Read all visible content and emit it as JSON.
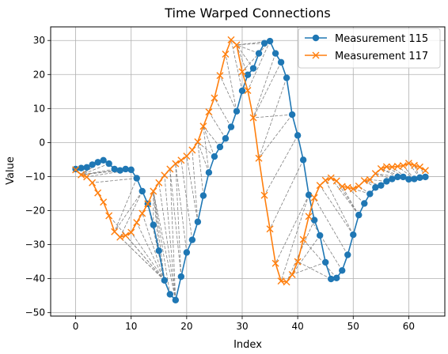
{
  "chart_data": {
    "type": "line",
    "title": "Time Warped Connections",
    "xlabel": "Index",
    "ylabel": "Value",
    "xlim": [
      -4.5,
      66.5
    ],
    "ylim": [
      -51,
      34
    ],
    "xticks": [
      0,
      10,
      20,
      30,
      40,
      50,
      60
    ],
    "yticks": [
      -50,
      -40,
      -30,
      -20,
      -10,
      0,
      10,
      20,
      30
    ],
    "grid": true,
    "legend_position": "top-right",
    "series": [
      {
        "name": "Measurement 115",
        "color": "#1f77b4",
        "marker": "circle",
        "x": [
          0,
          1,
          2,
          3,
          4,
          5,
          6,
          7,
          8,
          9,
          10,
          11,
          12,
          13,
          14,
          15,
          16,
          17,
          18,
          19,
          20,
          21,
          22,
          23,
          24,
          25,
          26,
          27,
          28,
          29,
          30,
          31,
          32,
          33,
          34,
          35,
          36,
          37,
          38,
          39,
          40,
          41,
          42,
          43,
          44,
          45,
          46,
          47,
          48,
          49,
          50,
          51,
          52,
          53,
          54,
          55,
          56,
          57,
          58,
          59,
          60,
          61,
          62,
          63
        ],
        "values": [
          -7.8,
          -7.5,
          -7.3,
          -6.5,
          -5.8,
          -5.2,
          -6.2,
          -7.8,
          -8.2,
          -7.8,
          -8,
          -10.5,
          -14.3,
          -18,
          -24.2,
          -31.8,
          -40.5,
          -44.6,
          -46.3,
          -39.4,
          -32.3,
          -28.6,
          -23.3,
          -15.6,
          -8.8,
          -4.1,
          -1.3,
          1.2,
          4.6,
          9.2,
          15.2,
          19.9,
          21.8,
          26.2,
          29.2,
          29.8,
          26.2,
          23.6,
          19,
          8.2,
          2.1,
          -5.1,
          -15.4,
          -22.8,
          -27.3,
          -35.2,
          -40.1,
          -39.8,
          -37.6,
          -33,
          -27.1,
          -21.3,
          -17.9,
          -15.1,
          -13.2,
          -12.6,
          -11.4,
          -10.7,
          -10.1,
          -10.1,
          -10.8,
          -10.7,
          -10.3,
          -10.1
        ]
      },
      {
        "name": "Measurement 117",
        "color": "#ff7f0e",
        "marker": "x",
        "x": [
          0,
          1,
          2,
          3,
          4,
          5,
          6,
          7,
          8,
          9,
          10,
          11,
          12,
          13,
          14,
          15,
          16,
          17,
          18,
          19,
          20,
          21,
          22,
          23,
          24,
          25,
          26,
          27,
          28,
          29,
          30,
          31,
          32,
          33,
          34,
          35,
          36,
          37,
          38,
          39,
          40,
          41,
          42,
          43,
          44,
          45,
          46,
          47,
          48,
          49,
          50,
          51,
          52,
          53,
          54,
          55,
          56,
          57,
          58,
          59,
          60,
          61,
          62,
          63
        ],
        "values": [
          -8,
          -9.5,
          -10.1,
          -11.8,
          -14.8,
          -17.5,
          -21.5,
          -26.2,
          -27.8,
          -27.3,
          -26.4,
          -23.5,
          -20.8,
          -18,
          -14.3,
          -11.8,
          -9.6,
          -7.8,
          -6.2,
          -5.2,
          -4,
          -2.2,
          0.2,
          4.8,
          9,
          13.1,
          19.7,
          26,
          30.2,
          28.7,
          20.8,
          15.3,
          7.3,
          -4.6,
          -15.5,
          -25.4,
          -35.5,
          -40.7,
          -41,
          -38.8,
          -35,
          -28.5,
          -21.7,
          -16.2,
          -12.6,
          -11.1,
          -10.4,
          -11.3,
          -12.9,
          -13.2,
          -13.6,
          -12.8,
          -11.2,
          -10.9,
          -9.1,
          -7.7,
          -7.1,
          -7.2,
          -7,
          -6.8,
          -6.1,
          -6.7,
          -7.2,
          -8.2
        ]
      }
    ],
    "connections": {
      "style": "dashed",
      "color": "#808080",
      "pairs": [
        [
          0,
          0
        ],
        [
          1,
          1
        ],
        [
          2,
          1
        ],
        [
          3,
          1
        ],
        [
          4,
          1
        ],
        [
          5,
          1
        ],
        [
          6,
          1
        ],
        [
          7,
          1
        ],
        [
          8,
          1
        ],
        [
          9,
          1
        ],
        [
          10,
          2
        ],
        [
          11,
          3
        ],
        [
          11,
          7
        ],
        [
          12,
          7
        ],
        [
          12,
          8
        ],
        [
          13,
          10
        ],
        [
          13,
          12
        ],
        [
          14,
          13
        ],
        [
          14,
          14
        ],
        [
          15,
          14
        ],
        [
          16,
          6
        ],
        [
          16,
          7
        ],
        [
          16,
          8
        ],
        [
          16,
          9
        ],
        [
          16,
          10
        ],
        [
          16,
          11
        ],
        [
          16,
          12
        ],
        [
          16,
          13
        ],
        [
          16,
          14
        ],
        [
          17,
          14
        ],
        [
          18,
          14
        ],
        [
          18,
          15
        ],
        [
          18,
          16
        ],
        [
          18,
          17
        ],
        [
          19,
          17
        ],
        [
          19,
          18
        ],
        [
          20,
          18
        ],
        [
          21,
          19
        ],
        [
          22,
          20
        ],
        [
          22,
          21
        ],
        [
          23,
          22
        ],
        [
          24,
          22
        ],
        [
          24,
          23
        ],
        [
          25,
          22
        ],
        [
          25,
          23
        ],
        [
          26,
          23
        ],
        [
          27,
          24
        ],
        [
          28,
          25
        ],
        [
          29,
          26
        ],
        [
          29,
          27
        ],
        [
          30,
          28
        ],
        [
          31,
          29
        ],
        [
          32,
          29
        ],
        [
          33,
          29
        ],
        [
          34,
          29
        ],
        [
          35,
          29
        ],
        [
          35,
          30
        ],
        [
          35,
          31
        ],
        [
          36,
          32
        ],
        [
          37,
          32
        ],
        [
          38,
          33
        ],
        [
          39,
          32
        ],
        [
          39,
          33
        ],
        [
          40,
          34
        ],
        [
          41,
          35
        ],
        [
          42,
          36
        ],
        [
          42,
          37
        ],
        [
          43,
          38
        ],
        [
          44,
          38
        ],
        [
          45,
          39
        ],
        [
          46,
          40
        ],
        [
          47,
          41
        ],
        [
          48,
          42
        ],
        [
          49,
          43
        ],
        [
          50,
          44
        ],
        [
          50,
          45
        ],
        [
          51,
          46
        ],
        [
          51,
          47
        ],
        [
          51,
          48
        ],
        [
          52,
          49
        ],
        [
          53,
          50
        ],
        [
          53,
          51
        ],
        [
          54,
          52
        ],
        [
          55,
          52
        ],
        [
          56,
          53
        ],
        [
          57,
          54
        ],
        [
          58,
          54
        ],
        [
          58,
          55
        ],
        [
          59,
          55
        ],
        [
          59,
          56
        ],
        [
          60,
          57
        ],
        [
          61,
          58
        ],
        [
          61,
          59
        ],
        [
          62,
          60
        ],
        [
          62,
          61
        ],
        [
          63,
          62
        ],
        [
          63,
          63
        ]
      ]
    }
  }
}
